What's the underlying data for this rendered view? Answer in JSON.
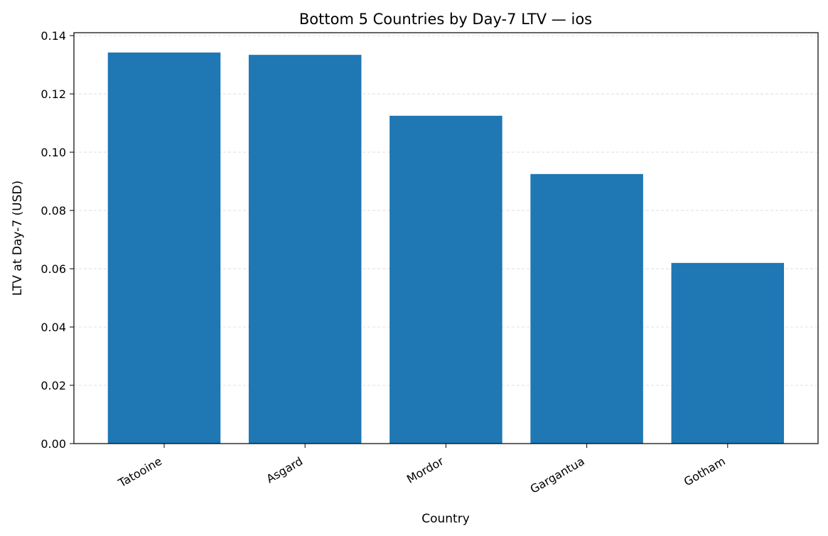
{
  "chart_data": {
    "type": "bar",
    "title": "Bottom 5 Countries by Day-7 LTV — ios",
    "xlabel": "Country",
    "ylabel": "LTV at Day-7 (USD)",
    "categories": [
      "Tatooine",
      "Asgard",
      "Mordor",
      "Gargantua",
      "Gotham"
    ],
    "values": [
      0.1342,
      0.1334,
      0.1125,
      0.0925,
      0.062
    ],
    "ylim": [
      0,
      0.141
    ],
    "yticks": [
      "0.00",
      "0.02",
      "0.04",
      "0.06",
      "0.08",
      "0.10",
      "0.12",
      "0.14"
    ],
    "grid": "horizontal dashed",
    "bar_color": "#1f77b4"
  }
}
